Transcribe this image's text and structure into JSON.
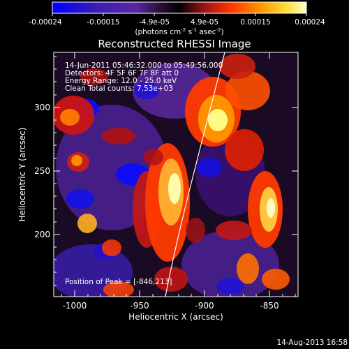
{
  "colorbar": {
    "ticks": [
      "-0.00024",
      "-0.00015",
      "-4.9e-05",
      "4.9e-05",
      "0.00015",
      "0.00024"
    ],
    "unit_main": "(photons cm",
    "unit_exp1": "-2",
    "unit_mid": " s",
    "unit_exp2": "-1",
    "unit_tail": " asec",
    "unit_exp3": "-2",
    "unit_close": ")"
  },
  "title": "Reconstructed RHESSI Image",
  "annotations": {
    "time_range": "14-Jun-2011 05:46:32.000 to 05:49:56.000",
    "detectors": "Detectors: 4F 5F 6F 7F 8F   att 0",
    "energy": "Energy Range: 12.0 - 25.0 keV",
    "clean": "Clean    Total counts: 7.53e+03",
    "peak": "Position of Peak = [-846,213]"
  },
  "axes": {
    "xlabel": "Heliocentric X (arcsec)",
    "ylabel": "Heliocentric Y (arcsec)",
    "xticks": [
      "-1000",
      "-950",
      "-900",
      "-850"
    ],
    "yticks": [
      "300",
      "250",
      "200"
    ]
  },
  "footer": {
    "date": "14-Aug-2013 16:58"
  },
  "colors": {
    "background": "#000000",
    "axis": "#ffffff",
    "colormap": [
      "#0000ff",
      "#3c1eb4",
      "#5a28a0",
      "#000000",
      "#a01414",
      "#ff3200",
      "#ff9600",
      "#ffdc3c",
      "#ffffb4"
    ]
  }
}
